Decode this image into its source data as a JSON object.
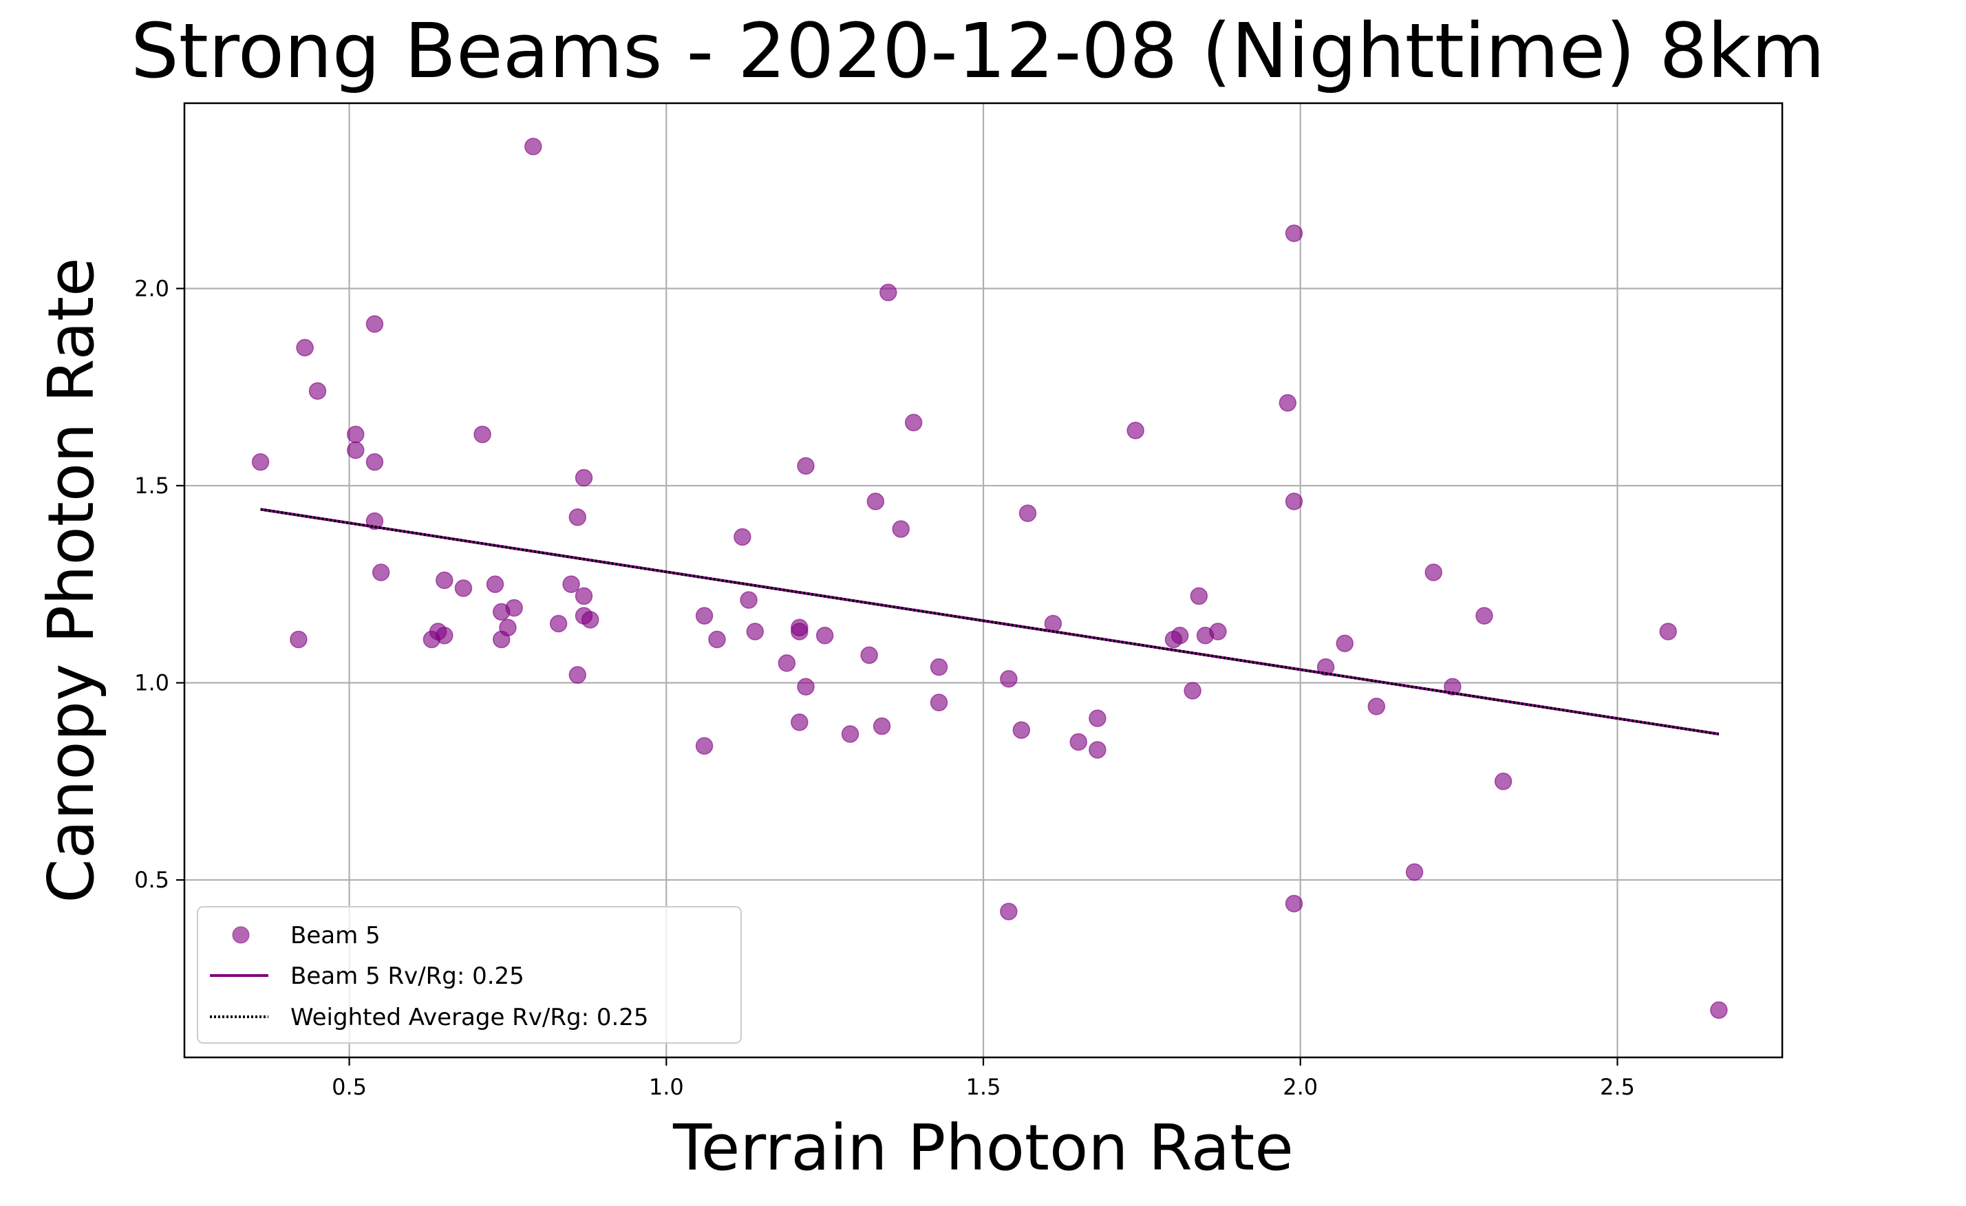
{
  "chart_data": {
    "type": "scatter",
    "title": "Strong Beams - 2020-12-08 (Nighttime) 8km",
    "xlabel": "Terrain Photon Rate",
    "ylabel": "Canopy Photon Rate",
    "xlim": [
      0.24,
      2.76
    ],
    "ylim": [
      0.05,
      2.47
    ],
    "xticks": [
      0.5,
      1.0,
      1.5,
      2.0,
      2.5
    ],
    "xtick_labels": [
      "0.5",
      "1.0",
      "1.5",
      "2.0",
      "2.5"
    ],
    "yticks": [
      0.5,
      1.0,
      1.5,
      2.0
    ],
    "ytick_labels": [
      "0.5",
      "1.0",
      "1.5",
      "2.0"
    ],
    "grid": true,
    "legend_position": "lower-left",
    "colors": {
      "beam": "#800080",
      "average": "#000000",
      "grid": "#b0b0b0"
    },
    "series": [
      {
        "name": "Beam 5",
        "kind": "scatter",
        "points": [
          [
            0.36,
            1.56
          ],
          [
            0.42,
            1.11
          ],
          [
            0.43,
            1.85
          ],
          [
            0.45,
            1.74
          ],
          [
            0.51,
            1.63
          ],
          [
            0.51,
            1.59
          ],
          [
            0.54,
            1.56
          ],
          [
            0.54,
            1.91
          ],
          [
            0.54,
            1.41
          ],
          [
            0.55,
            1.28
          ],
          [
            0.63,
            1.11
          ],
          [
            0.64,
            1.13
          ],
          [
            0.65,
            1.12
          ],
          [
            0.65,
            1.26
          ],
          [
            0.68,
            1.24
          ],
          [
            0.71,
            1.63
          ],
          [
            0.73,
            1.25
          ],
          [
            0.74,
            1.11
          ],
          [
            0.74,
            1.18
          ],
          [
            0.75,
            1.14
          ],
          [
            0.76,
            1.19
          ],
          [
            0.79,
            2.36
          ],
          [
            0.83,
            1.15
          ],
          [
            0.85,
            1.25
          ],
          [
            0.86,
            1.42
          ],
          [
            0.86,
            1.02
          ],
          [
            0.87,
            1.17
          ],
          [
            0.87,
            1.22
          ],
          [
            0.87,
            1.52
          ],
          [
            0.88,
            1.16
          ],
          [
            1.06,
            0.84
          ],
          [
            1.06,
            1.17
          ],
          [
            1.08,
            1.11
          ],
          [
            1.12,
            1.37
          ],
          [
            1.13,
            1.21
          ],
          [
            1.14,
            1.13
          ],
          [
            1.19,
            1.05
          ],
          [
            1.21,
            1.13
          ],
          [
            1.21,
            1.14
          ],
          [
            1.21,
            0.9
          ],
          [
            1.22,
            0.99
          ],
          [
            1.22,
            1.55
          ],
          [
            1.25,
            1.12
          ],
          [
            1.29,
            0.87
          ],
          [
            1.32,
            1.07
          ],
          [
            1.33,
            1.46
          ],
          [
            1.34,
            0.89
          ],
          [
            1.35,
            1.99
          ],
          [
            1.37,
            1.39
          ],
          [
            1.39,
            1.66
          ],
          [
            1.43,
            1.04
          ],
          [
            1.43,
            0.95
          ],
          [
            1.54,
            1.01
          ],
          [
            1.54,
            0.42
          ],
          [
            1.56,
            0.88
          ],
          [
            1.57,
            1.43
          ],
          [
            1.61,
            1.15
          ],
          [
            1.65,
            0.85
          ],
          [
            1.68,
            0.83
          ],
          [
            1.68,
            0.91
          ],
          [
            1.74,
            1.64
          ],
          [
            1.8,
            1.11
          ],
          [
            1.81,
            1.12
          ],
          [
            1.83,
            0.98
          ],
          [
            1.84,
            1.22
          ],
          [
            1.85,
            1.12
          ],
          [
            1.87,
            1.13
          ],
          [
            1.98,
            1.71
          ],
          [
            1.99,
            2.14
          ],
          [
            1.99,
            0.44
          ],
          [
            1.99,
            1.46
          ],
          [
            2.04,
            1.04
          ],
          [
            2.07,
            1.1
          ],
          [
            2.12,
            0.94
          ],
          [
            2.18,
            0.52
          ],
          [
            2.21,
            1.28
          ],
          [
            2.24,
            0.99
          ],
          [
            2.29,
            1.17
          ],
          [
            2.32,
            0.75
          ],
          [
            2.58,
            1.13
          ],
          [
            2.66,
            0.17
          ]
        ]
      },
      {
        "name": "Beam 5 Rv/Rg: 0.25",
        "kind": "line",
        "points": [
          [
            0.36,
            1.44
          ],
          [
            2.66,
            0.87
          ]
        ]
      },
      {
        "name": "Weighted Average Rv/Rg: 0.25",
        "kind": "line-dotted",
        "points": [
          [
            0.36,
            1.44
          ],
          [
            2.66,
            0.87
          ]
        ]
      }
    ]
  }
}
